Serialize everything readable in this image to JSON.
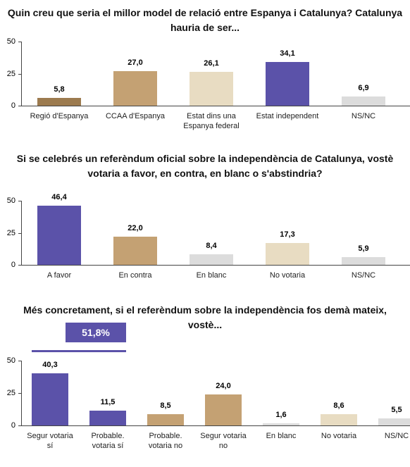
{
  "chart_data": [
    {
      "type": "bar",
      "title": "Quin creu que seria el millor model de relació entre Espanya i Catalunya? Catalunya hauria de ser...",
      "categories": [
        "Regió d'Espanya",
        "CCAA d'Espanya",
        "Estat dins una Espanya federal",
        "Estat independent",
        "NS/NC"
      ],
      "values": [
        5.8,
        27.0,
        26.1,
        34.1,
        6.9
      ],
      "value_labels": [
        "5,8",
        "27,0",
        "26,1",
        "34,1",
        "6,9"
      ],
      "colors": [
        "#9c7b4f",
        "#c4a173",
        "#e8dcc2",
        "#5b52a9",
        "#dcdcdc"
      ],
      "ylim": [
        0,
        50
      ],
      "yticks": [
        0,
        25,
        50
      ]
    },
    {
      "type": "bar",
      "title": "Si se celebrés un referèndum oficial sobre la independència de Catalunya, vostè votaria a favor, en contra, en blanc o s'abstindria?",
      "categories": [
        "A favor",
        "En contra",
        "En blanc",
        "No votaria",
        "NS/NC"
      ],
      "values": [
        46.4,
        22.0,
        8.4,
        17.3,
        5.9
      ],
      "value_labels": [
        "46,4",
        "22,0",
        "8,4",
        "17,3",
        "5,9"
      ],
      "colors": [
        "#5b52a9",
        "#c4a173",
        "#dcdcdc",
        "#e8dcc2",
        "#dcdcdc"
      ],
      "ylim": [
        0,
        50
      ],
      "yticks": [
        0,
        25,
        50
      ]
    },
    {
      "type": "bar",
      "title": "Més concretament, si el referèndum sobre la independència fos demà mateix, vostè...",
      "annotation": "51,8%",
      "categories": [
        "Segur votaria sí",
        "Probable. votaria sí",
        "Probable. votaria no",
        "Segur votaria no",
        "En blanc",
        "No votaria",
        "NS/NC"
      ],
      "values": [
        40.3,
        11.5,
        8.5,
        24.0,
        1.6,
        8.6,
        5.5
      ],
      "value_labels": [
        "40,3",
        "11,5",
        "8,5",
        "24,0",
        "1,6",
        "8,6",
        "5,5"
      ],
      "colors": [
        "#5b52a9",
        "#5b52a9",
        "#c4a173",
        "#c4a173",
        "#dcdcdc",
        "#e8dcc2",
        "#dcdcdc"
      ],
      "ylim": [
        0,
        50
      ],
      "yticks": [
        0,
        25,
        50
      ]
    }
  ]
}
